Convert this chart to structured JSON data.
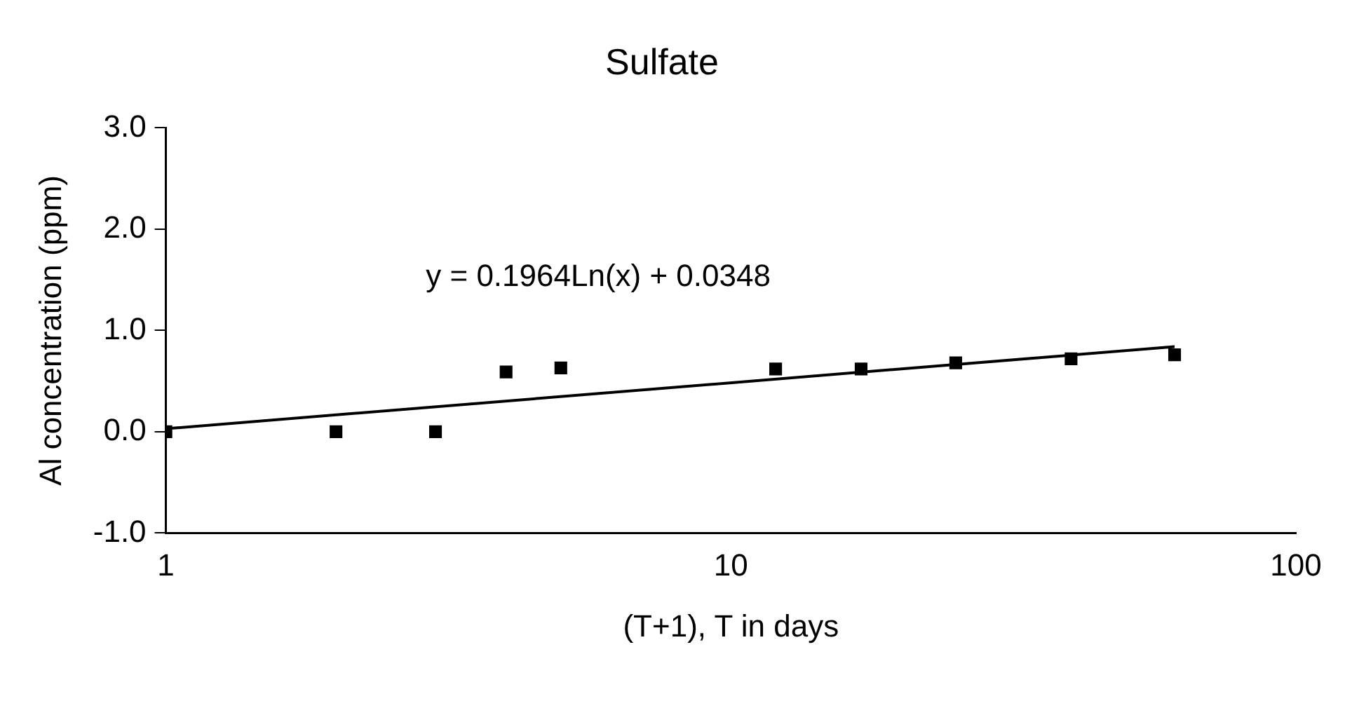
{
  "chart_data": {
    "type": "scatter",
    "title": "Sulfate",
    "xlabel": "(T+1), T in days",
    "ylabel": "Al concentration (ppm)",
    "log": "x",
    "xlim": [
      1,
      100
    ],
    "xticks": [
      1,
      10,
      100
    ],
    "ylim": [
      -1,
      3
    ],
    "yticks": [
      {
        "value": -1,
        "label": "-1.0"
      },
      {
        "value": 0,
        "label": "0.0"
      },
      {
        "value": 1,
        "label": "1.0"
      },
      {
        "value": 2,
        "label": "2.0"
      },
      {
        "value": 3,
        "label": "3.0"
      }
    ],
    "grid": false,
    "legend": false,
    "marker": "square",
    "annotations": [
      "y = 0.1964Ln(x) + 0.0348"
    ],
    "series": [
      {
        "color": "#000000",
        "x": [
          1,
          2,
          3,
          4,
          5,
          12,
          17,
          25,
          40,
          61
        ],
        "values": [
          0,
          0,
          0,
          0.59,
          0.63,
          0.62,
          0.62,
          0.68,
          0.72,
          0.76
        ]
      },
      {
        "type": "line",
        "color": "#000000",
        "x": [
          1,
          61
        ],
        "values": [
          0.03,
          0.84
        ],
        "marker": "none"
      }
    ]
  }
}
